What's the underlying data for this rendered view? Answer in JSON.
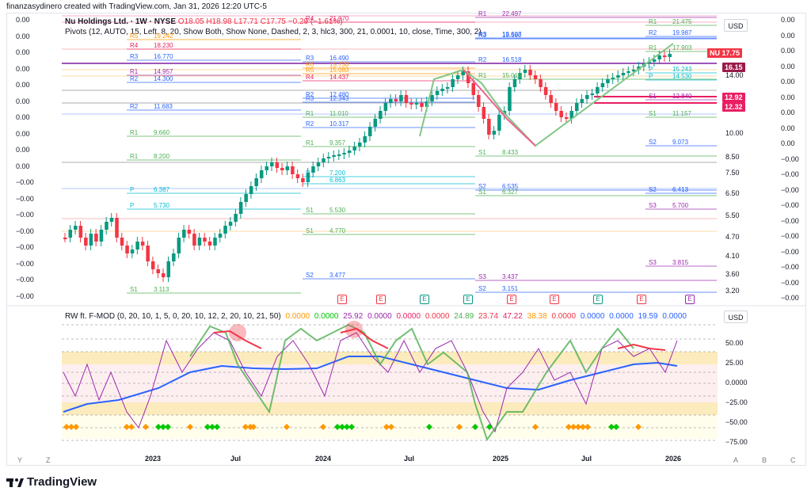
{
  "header": {
    "text": "finanzasydinero created with TradingView.com, Jan 31, 2026 12:20 UTC-5"
  },
  "legend": {
    "symbol": "Nu Holdings Ltd. · 1W · NYSE",
    "ohlc": "O18.05  H18.98  L17.71  C17.75  −0.29 (−1.61%)",
    "pivots": "Pivots (12, AUTO, 15, Left, 8, 20, Show Both, Show None, Dashed, 2, 3, hlc3, 300, 21, 0.0001, 10, close, Time, 300, 2)",
    "osc": "RW ft. F-MOD (0, 20, 10, 1, 5, 0, 20, 10, 12, 2, 20, 10, 21, 50)",
    "osc_values": [
      {
        "v": "0.0000",
        "c": "#ff9800"
      },
      {
        "v": "0.0000",
        "c": "#00c800"
      },
      {
        "v": "25.92",
        "c": "#9c27b0"
      },
      {
        "v": "0.0000",
        "c": "#9c27b0"
      },
      {
        "v": "0.0000",
        "c": "#e91e63"
      },
      {
        "v": "0.0000",
        "c": "#f23645"
      },
      {
        "v": "24.89",
        "c": "#4caf50"
      },
      {
        "v": "23.74",
        "c": "#f23645"
      },
      {
        "v": "47.22",
        "c": "#e91e63"
      },
      {
        "v": "38.38",
        "c": "#ff9800"
      },
      {
        "v": "0.0000",
        "c": "#f23645"
      },
      {
        "v": "0.0000",
        "c": "#2962ff"
      },
      {
        "v": "0.0000",
        "c": "#2962ff"
      },
      {
        "v": "19.59",
        "c": "#2962ff"
      },
      {
        "v": "0.0000",
        "c": "#2962ff"
      }
    ]
  },
  "usd_label": "USD",
  "left_axis": [
    "0.00",
    "0.00",
    "0.00",
    "0.00",
    "0.00",
    "0.00",
    "0.00",
    "0.00",
    "0.00",
    "0.00",
    "−0.00",
    "−0.00",
    "−0.00",
    "−0.00",
    "−0.00",
    "−0.00",
    "−0.00",
    "−0.00"
  ],
  "price_axis": [
    "14.00",
    "10.00",
    "8.50",
    "7.50",
    "6.50",
    "5.50",
    "4.70",
    "4.10",
    "3.60",
    "3.20"
  ],
  "right_axis": [
    "0.00",
    "0.00",
    "0.00",
    "0.00",
    "0.00",
    "0.00",
    "0.00",
    "0.00",
    "0.00",
    "−0.00",
    "−0.00",
    "−0.00",
    "−0.00",
    "−0.00",
    "−0.00",
    "−0.00",
    "−0.00",
    "−0.00",
    "−0.00"
  ],
  "osc_axis": [
    "50.00",
    "25.00",
    "0.0000",
    "−25.00",
    "−50.00",
    "−75.00"
  ],
  "time_axis": [
    "2023",
    "Jul",
    "2024",
    "Jul",
    "2025",
    "Jul",
    "2026"
  ],
  "corner_left": [
    "Y",
    "Z"
  ],
  "corner_right": [
    "A",
    "B",
    "C"
  ],
  "price_tags": [
    {
      "label": "NU",
      "value": "17.75",
      "color": "#f23645"
    },
    {
      "value": "16.15",
      "color": "#9c1a4a"
    },
    {
      "value": "12.92",
      "color": "#e91e63"
    },
    {
      "value": "12.32",
      "color": "#e91e63"
    }
  ],
  "pivots": [
    {
      "t": "R4",
      "v": "21.970",
      "c": "#e91e63"
    },
    {
      "t": "R1",
      "v": "22.497",
      "c": "#9c27b0"
    },
    {
      "t": "R3",
      "v": "19.607",
      "c": "#2962ff"
    },
    {
      "t": "R5",
      "v": "19.242",
      "c": "#ff9800"
    },
    {
      "t": "R4",
      "v": "18.230",
      "c": "#e91e63"
    },
    {
      "t": "R3",
      "v": "16.770",
      "c": "#2962ff"
    },
    {
      "t": "R3",
      "v": "16.490",
      "c": "#2962ff"
    },
    {
      "t": "R2",
      "v": "16.518",
      "c": "#2962ff"
    },
    {
      "t": "R6",
      "v": "15.730",
      "c": "#ff9800"
    },
    {
      "t": "R5",
      "v": "15.083",
      "c": "#ff9800"
    },
    {
      "t": "R1",
      "v": "14.957",
      "c": "#9c27b0"
    },
    {
      "t": "R4",
      "v": "14.437",
      "c": "#e91e63"
    },
    {
      "t": "R2",
      "v": "14.300",
      "c": "#2962ff"
    },
    {
      "t": "R2",
      "v": "12.480",
      "c": "#2962ff"
    },
    {
      "t": "R3",
      "v": "12.343",
      "c": "#2962ff"
    },
    {
      "t": "R2",
      "v": "11.683",
      "c": "#2962ff"
    },
    {
      "t": "R1",
      "v": "11.010",
      "c": "#4caf50"
    },
    {
      "t": "R2",
      "v": "10.317",
      "c": "#2962ff"
    },
    {
      "t": "R1",
      "v": "9.660",
      "c": "#4caf50"
    },
    {
      "t": "R1",
      "v": "9.357",
      "c": "#4caf50"
    },
    {
      "t": "S1",
      "v": "8.433",
      "c": "#4caf50"
    },
    {
      "t": "R1",
      "v": "8.200",
      "c": "#4caf50"
    },
    {
      "t": "P",
      "v": "7.200",
      "c": "#00bcd4"
    },
    {
      "t": "P",
      "v": "6.863",
      "c": "#00bcd4"
    },
    {
      "t": "P",
      "v": "6.387",
      "c": "#00bcd4"
    },
    {
      "t": "S2",
      "v": "6.535",
      "c": "#2962ff"
    },
    {
      "t": "S1",
      "v": "6.327",
      "c": "#4caf50"
    },
    {
      "t": "S2",
      "v": "6.413",
      "c": "#2962ff"
    },
    {
      "t": "P",
      "v": "5.730",
      "c": "#00bcd4"
    },
    {
      "t": "S1",
      "v": "5.530",
      "c": "#4caf50"
    },
    {
      "t": "S3",
      "v": "5.700",
      "c": "#9c27b0"
    },
    {
      "t": "S1",
      "v": "4.770",
      "c": "#4caf50"
    },
    {
      "t": "S3",
      "v": "3.815",
      "c": "#9c27b0"
    },
    {
      "t": "S2",
      "v": "3.477",
      "c": "#2962ff"
    },
    {
      "t": "S3",
      "v": "3.437",
      "c": "#9c27b0"
    },
    {
      "t": "S1",
      "v": "3.113",
      "c": "#4caf50"
    },
    {
      "t": "S2",
      "v": "3.151",
      "c": "#2962ff"
    },
    {
      "t": "R1",
      "v": "21.475",
      "c": "#4caf50"
    },
    {
      "t": "R2",
      "v": "19.987",
      "c": "#2962ff"
    },
    {
      "t": "R1",
      "v": "17.903",
      "c": "#4caf50"
    },
    {
      "t": "P",
      "v": "15.243",
      "c": "#00bcd4"
    },
    {
      "t": "P",
      "v": "14.530",
      "c": "#00bcd4"
    },
    {
      "t": "S1",
      "v": "12.840",
      "c": "#9c27b0"
    },
    {
      "t": "S1",
      "v": "11.157",
      "c": "#4caf50"
    },
    {
      "t": "S2",
      "v": "9.073",
      "c": "#2962ff"
    },
    {
      "t": "R1",
      "v": "15.019",
      "c": "#4caf50"
    },
    {
      "t": "R3",
      "v": "18.580",
      "c": "#2962ff"
    }
  ],
  "earnings_label": "E",
  "brand": "TradingView"
}
